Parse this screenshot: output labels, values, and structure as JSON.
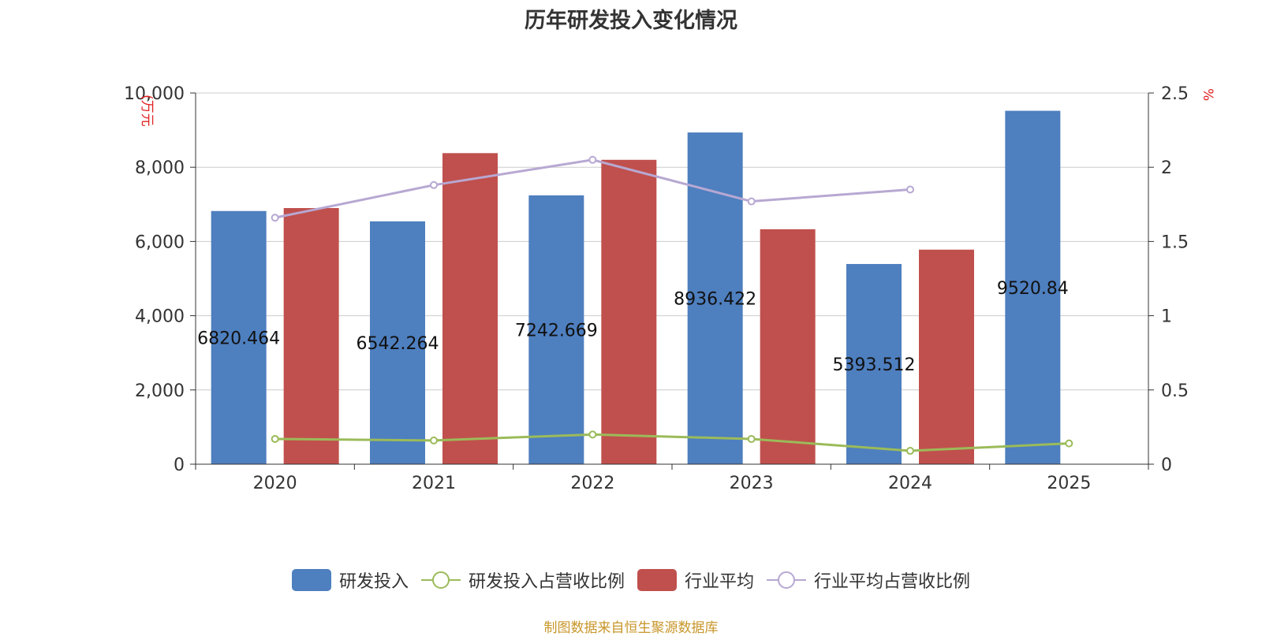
{
  "chart_data": {
    "type": "bar",
    "title": "历年研发投入变化情况",
    "ylabel_left": "(万元",
    "ylabel_right": "%",
    "categories": [
      "2020",
      "2021",
      "2022",
      "2023",
      "2024",
      "2025"
    ],
    "ylim_left": [
      0,
      10000
    ],
    "ylim_right": [
      0,
      2.5
    ],
    "yticks_left": [
      "0",
      "2,000",
      "4,000",
      "6,000",
      "8,000",
      "10,000"
    ],
    "yticks_right": [
      "0",
      "0.5",
      "1",
      "1.5",
      "2",
      "2.5"
    ],
    "grid": true,
    "legend_position": "bottom",
    "series": [
      {
        "name": "研发投入",
        "type": "bar",
        "axis": "left",
        "color": "#4e7fbf",
        "values": [
          6820.464,
          6542.264,
          7242.669,
          8936.422,
          5393.512,
          9520.84
        ],
        "labels": [
          "6820.464",
          "6542.264",
          "7242.669",
          "8936.422",
          "5393.512",
          "9520.84"
        ]
      },
      {
        "name": "研发投入占营收比例",
        "type": "line",
        "axis": "right",
        "color": "#9bbb59",
        "values": [
          0.17,
          0.16,
          0.2,
          0.17,
          0.09,
          0.14
        ]
      },
      {
        "name": "行业平均",
        "type": "bar",
        "axis": "left",
        "color": "#c0504d",
        "values": [
          6900,
          8380,
          8200,
          6330,
          5780,
          null
        ]
      },
      {
        "name": "行业平均占营收比例",
        "type": "line",
        "axis": "right",
        "color": "#b7a8d2",
        "values": [
          1.66,
          1.88,
          2.05,
          1.77,
          1.85,
          null
        ]
      }
    ]
  },
  "legend": [
    "研发投入",
    "研发投入占营收比例",
    "行业平均",
    "行业平均占营收比例"
  ],
  "source": "制图数据来自恒生聚源数据库"
}
